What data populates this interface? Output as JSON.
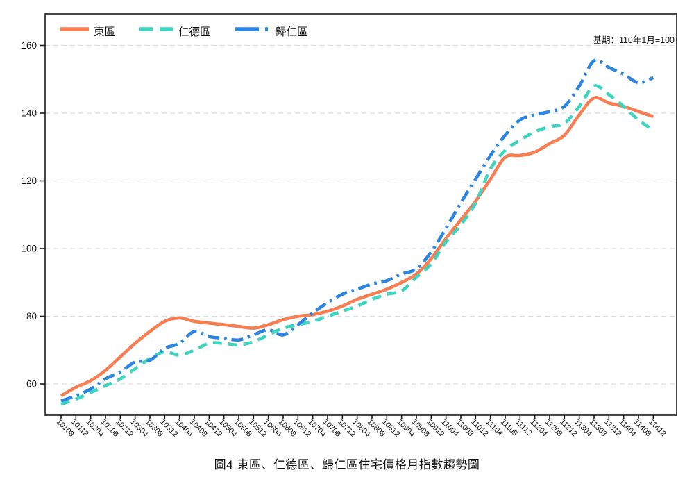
{
  "title": "圖4 東區、仁德區、歸仁區住宅價格月指數趨勢圖",
  "note": "基期：110年1月=100",
  "legend": {
    "item1": "東區",
    "item2": "仁德區",
    "item3": "歸仁區"
  },
  "chart_data": {
    "type": "line",
    "title": "圖4 東區、仁德區、歸仁區住宅價格月指數趨勢圖",
    "note": "基期：110年1月=100",
    "xlabel": "",
    "ylabel": "",
    "ylim": [
      51,
      169
    ],
    "yticks": [
      60,
      80,
      100,
      120,
      140,
      160
    ],
    "grid": "horizontal-dashed",
    "legend_position": "top-left-inside",
    "x_tick_labels": [
      "10108",
      "10112",
      "10204",
      "10208",
      "10212",
      "10304",
      "10308",
      "10312",
      "10404",
      "10408",
      "10412",
      "10504",
      "10508",
      "10512",
      "10604",
      "10608",
      "10612",
      "10704",
      "10708",
      "10712",
      "10804",
      "10808",
      "10812",
      "10904",
      "10908",
      "10912",
      "11004",
      "11008",
      "11012",
      "11104",
      "11108",
      "11112",
      "11204",
      "11208",
      "11212",
      "11304",
      "11308",
      "11312",
      "11404",
      "11408",
      "11412"
    ],
    "series": [
      {
        "name": "東區",
        "color": "#F77D52",
        "style": "solid",
        "values": [
          56.5,
          59,
          61,
          64,
          68,
          72,
          75.5,
          78.5,
          79.5,
          78.5,
          78,
          77.5,
          77,
          76.5,
          77.5,
          79,
          80,
          80.5,
          81.5,
          83,
          85,
          86.5,
          88,
          90,
          92.5,
          97,
          103,
          108.5,
          114,
          120.5,
          127,
          127.5,
          128.5,
          131,
          133.5,
          139.5,
          144.5,
          143,
          142,
          140.5,
          139
        ]
      },
      {
        "name": "仁德區",
        "color": "#3ED4BF",
        "style": "dashed",
        "values": [
          54,
          55.5,
          57.5,
          59.5,
          61.5,
          64.5,
          67.5,
          69.5,
          68.5,
          70,
          72,
          72,
          71.5,
          72.5,
          74.5,
          76.5,
          77.5,
          78.5,
          80,
          81.5,
          83,
          85,
          86.5,
          87.5,
          91.5,
          95.5,
          102,
          107,
          113.5,
          123.5,
          129,
          132,
          134.5,
          136,
          137,
          142,
          148,
          145.5,
          142,
          138,
          135
        ]
      },
      {
        "name": "歸仁區",
        "color": "#2C86E1",
        "style": "dash-dot",
        "values": [
          55,
          56.5,
          58.5,
          61.5,
          63.5,
          66.5,
          67,
          70.5,
          72,
          75.5,
          74,
          73.5,
          73,
          74.5,
          76,
          74.5,
          77.5,
          81,
          84,
          86.5,
          88,
          89.5,
          90.5,
          92.5,
          94,
          99,
          106,
          113.5,
          120.5,
          127.5,
          133.5,
          138,
          139.5,
          140.5,
          142,
          148,
          155.5,
          153.5,
          151.5,
          149,
          150.5
        ]
      }
    ],
    "grid_color": "#d9dee1",
    "axis_color": "#1a1a1a"
  }
}
